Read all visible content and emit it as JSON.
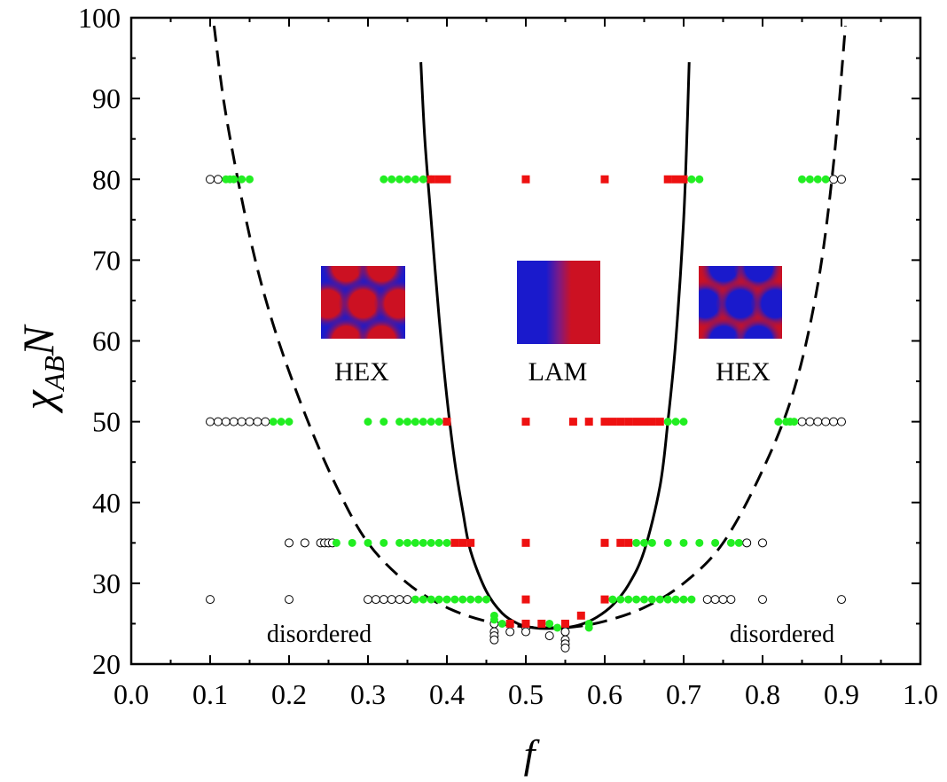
{
  "chart_data": {
    "type": "scatter",
    "xlabel": "f",
    "ylabel_main": "χ",
    "ylabel_sub": "AB",
    "ylabel_end": "N",
    "xlim": [
      0.0,
      1.0
    ],
    "ylim": [
      20,
      100
    ],
    "xticks": [
      "0.0",
      "0.1",
      "0.2",
      "0.3",
      "0.4",
      "0.5",
      "0.6",
      "0.7",
      "0.8",
      "0.9",
      "1.0"
    ],
    "yticks": [
      "20",
      "30",
      "40",
      "50",
      "60",
      "70",
      "80",
      "90",
      "100"
    ],
    "grid": false,
    "annotations": {
      "disordered_left": "disordered",
      "disordered_right": "disordered",
      "hex_left": "HEX",
      "lam": "LAM",
      "hex_right": "HEX"
    },
    "colors": {
      "disordered": "#ffffff",
      "hex": "#22ee22",
      "lam": "#ee1111",
      "block_a": "#1a1acc",
      "block_b": "#cc1122"
    },
    "series": [
      {
        "phase": "disordered",
        "marker": "open-circle",
        "points": [
          [
            0.1,
            80
          ],
          [
            0.11,
            80
          ],
          [
            0.1,
            50
          ],
          [
            0.11,
            50
          ],
          [
            0.12,
            50
          ],
          [
            0.13,
            50
          ],
          [
            0.14,
            50
          ],
          [
            0.15,
            50
          ],
          [
            0.16,
            50
          ],
          [
            0.17,
            50
          ],
          [
            0.2,
            35
          ],
          [
            0.22,
            35
          ],
          [
            0.24,
            35
          ],
          [
            0.245,
            35
          ],
          [
            0.25,
            35
          ],
          [
            0.255,
            35
          ],
          [
            0.1,
            28
          ],
          [
            0.2,
            28
          ],
          [
            0.3,
            28
          ],
          [
            0.31,
            28
          ],
          [
            0.32,
            28
          ],
          [
            0.33,
            28
          ],
          [
            0.34,
            28
          ],
          [
            0.35,
            28
          ],
          [
            0.46,
            25
          ],
          [
            0.46,
            24
          ],
          [
            0.46,
            23.5
          ],
          [
            0.46,
            23
          ],
          [
            0.48,
            24
          ],
          [
            0.5,
            24.5
          ],
          [
            0.5,
            24
          ],
          [
            0.53,
            23.5
          ],
          [
            0.55,
            24
          ],
          [
            0.55,
            23
          ],
          [
            0.55,
            22.5
          ],
          [
            0.55,
            22
          ],
          [
            0.89,
            80
          ],
          [
            0.9,
            80
          ],
          [
            0.85,
            50
          ],
          [
            0.86,
            50
          ],
          [
            0.87,
            50
          ],
          [
            0.88,
            50
          ],
          [
            0.89,
            50
          ],
          [
            0.9,
            50
          ],
          [
            0.78,
            35
          ],
          [
            0.8,
            35
          ],
          [
            0.73,
            28
          ],
          [
            0.74,
            28
          ],
          [
            0.75,
            28
          ],
          [
            0.76,
            28
          ],
          [
            0.8,
            28
          ],
          [
            0.9,
            28
          ]
        ]
      },
      {
        "phase": "hex",
        "marker": "filled-circle",
        "points": [
          [
            0.12,
            80
          ],
          [
            0.125,
            80
          ],
          [
            0.13,
            80
          ],
          [
            0.14,
            80
          ],
          [
            0.15,
            80
          ],
          [
            0.32,
            80
          ],
          [
            0.33,
            80
          ],
          [
            0.34,
            80
          ],
          [
            0.35,
            80
          ],
          [
            0.36,
            80
          ],
          [
            0.37,
            80
          ],
          [
            0.38,
            80
          ],
          [
            0.7,
            80
          ],
          [
            0.71,
            80
          ],
          [
            0.72,
            80
          ],
          [
            0.85,
            80
          ],
          [
            0.86,
            80
          ],
          [
            0.87,
            80
          ],
          [
            0.88,
            80
          ],
          [
            0.18,
            50
          ],
          [
            0.19,
            50
          ],
          [
            0.2,
            50
          ],
          [
            0.3,
            50
          ],
          [
            0.32,
            50
          ],
          [
            0.34,
            50
          ],
          [
            0.35,
            50
          ],
          [
            0.36,
            50
          ],
          [
            0.37,
            50
          ],
          [
            0.38,
            50
          ],
          [
            0.39,
            50
          ],
          [
            0.68,
            50
          ],
          [
            0.69,
            50
          ],
          [
            0.7,
            50
          ],
          [
            0.82,
            50
          ],
          [
            0.83,
            50
          ],
          [
            0.835,
            50
          ],
          [
            0.84,
            50
          ],
          [
            0.26,
            35
          ],
          [
            0.28,
            35
          ],
          [
            0.3,
            35
          ],
          [
            0.32,
            35
          ],
          [
            0.34,
            35
          ],
          [
            0.35,
            35
          ],
          [
            0.36,
            35
          ],
          [
            0.37,
            35
          ],
          [
            0.38,
            35
          ],
          [
            0.39,
            35
          ],
          [
            0.4,
            35
          ],
          [
            0.64,
            35
          ],
          [
            0.65,
            35
          ],
          [
            0.66,
            35
          ],
          [
            0.68,
            35
          ],
          [
            0.7,
            35
          ],
          [
            0.72,
            35
          ],
          [
            0.74,
            35
          ],
          [
            0.76,
            35
          ],
          [
            0.77,
            35
          ],
          [
            0.36,
            28
          ],
          [
            0.37,
            28
          ],
          [
            0.38,
            28
          ],
          [
            0.39,
            28
          ],
          [
            0.4,
            28
          ],
          [
            0.41,
            28
          ],
          [
            0.42,
            28
          ],
          [
            0.43,
            28
          ],
          [
            0.44,
            28
          ],
          [
            0.45,
            28
          ],
          [
            0.61,
            28
          ],
          [
            0.62,
            28
          ],
          [
            0.63,
            28
          ],
          [
            0.64,
            28
          ],
          [
            0.65,
            28
          ],
          [
            0.66,
            28
          ],
          [
            0.67,
            28
          ],
          [
            0.68,
            28
          ],
          [
            0.69,
            28
          ],
          [
            0.7,
            28
          ],
          [
            0.71,
            28
          ],
          [
            0.46,
            26
          ],
          [
            0.46,
            25.5
          ],
          [
            0.47,
            25
          ],
          [
            0.53,
            25
          ],
          [
            0.54,
            24.5
          ],
          [
            0.58,
            25
          ],
          [
            0.58,
            24.5
          ]
        ]
      },
      {
        "phase": "lam",
        "marker": "filled-square",
        "points": [
          [
            0.38,
            80
          ],
          [
            0.39,
            80
          ],
          [
            0.4,
            80
          ],
          [
            0.5,
            80
          ],
          [
            0.6,
            80
          ],
          [
            0.68,
            80
          ],
          [
            0.69,
            80
          ],
          [
            0.7,
            80
          ],
          [
            0.4,
            50
          ],
          [
            0.5,
            50
          ],
          [
            0.56,
            50
          ],
          [
            0.58,
            50
          ],
          [
            0.6,
            50
          ],
          [
            0.61,
            50
          ],
          [
            0.62,
            50
          ],
          [
            0.63,
            50
          ],
          [
            0.64,
            50
          ],
          [
            0.65,
            50
          ],
          [
            0.66,
            50
          ],
          [
            0.67,
            50
          ],
          [
            0.41,
            35
          ],
          [
            0.42,
            35
          ],
          [
            0.43,
            35
          ],
          [
            0.5,
            35
          ],
          [
            0.6,
            35
          ],
          [
            0.62,
            35
          ],
          [
            0.63,
            35
          ],
          [
            0.5,
            28
          ],
          [
            0.6,
            28
          ],
          [
            0.48,
            25
          ],
          [
            0.5,
            25
          ],
          [
            0.52,
            25
          ],
          [
            0.55,
            25
          ],
          [
            0.57,
            26
          ]
        ]
      }
    ],
    "boundaries": [
      {
        "style": "dashed",
        "points": [
          [
            0.105,
            99
          ],
          [
            0.12,
            88
          ],
          [
            0.15,
            73
          ],
          [
            0.18,
            62
          ],
          [
            0.22,
            51
          ],
          [
            0.26,
            42
          ],
          [
            0.3,
            35
          ],
          [
            0.35,
            30
          ],
          [
            0.4,
            27
          ],
          [
            0.45,
            25.3
          ],
          [
            0.5,
            24.6
          ],
          [
            0.53,
            24.5
          ],
          [
            0.56,
            24.6
          ],
          [
            0.6,
            25.3
          ],
          [
            0.65,
            27
          ],
          [
            0.7,
            30
          ],
          [
            0.75,
            35
          ],
          [
            0.8,
            44
          ],
          [
            0.84,
            54
          ],
          [
            0.87,
            67
          ],
          [
            0.89,
            82
          ],
          [
            0.905,
            99
          ]
        ]
      },
      {
        "style": "solid",
        "points": [
          [
            0.367,
            94.5
          ],
          [
            0.372,
            85
          ],
          [
            0.38,
            75
          ],
          [
            0.39,
            63
          ],
          [
            0.4,
            53
          ],
          [
            0.41,
            45
          ],
          [
            0.42,
            39
          ],
          [
            0.43,
            34
          ],
          [
            0.45,
            29
          ],
          [
            0.47,
            26.3
          ],
          [
            0.49,
            25.0
          ],
          [
            0.51,
            24.5
          ],
          [
            0.53,
            24.4
          ],
          [
            0.55,
            24.5
          ],
          [
            0.57,
            24.9
          ],
          [
            0.59,
            25.8
          ],
          [
            0.61,
            27.3
          ],
          [
            0.63,
            29.8
          ],
          [
            0.65,
            34
          ],
          [
            0.67,
            42
          ],
          [
            0.68,
            50
          ],
          [
            0.69,
            60
          ],
          [
            0.7,
            75
          ],
          [
            0.705,
            88
          ],
          [
            0.707,
            94.5
          ]
        ]
      }
    ]
  }
}
